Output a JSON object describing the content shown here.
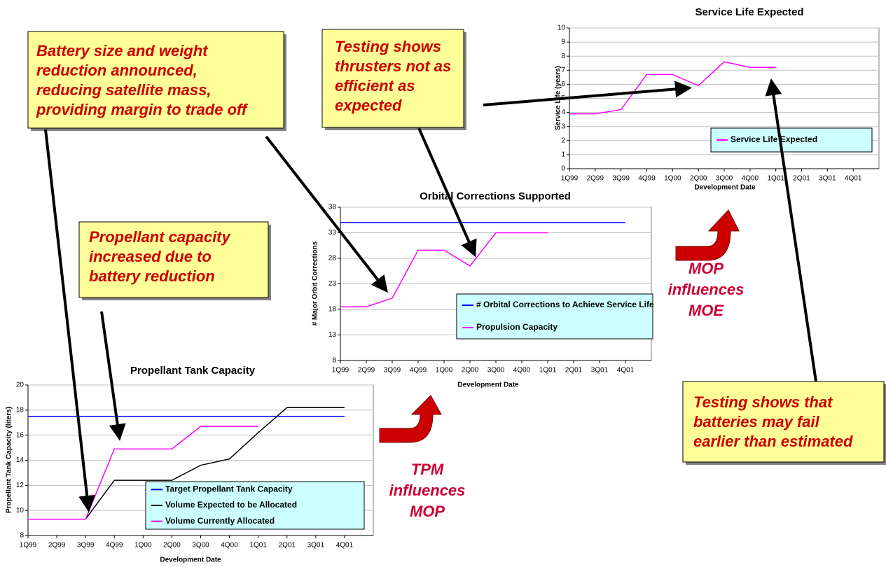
{
  "chart_data": [
    {
      "type": "line",
      "title": "Service Life Expected",
      "x_label": "Development Date",
      "y_label": "Service Life (years)",
      "categories": [
        "1Q99",
        "2Q99",
        "3Q99",
        "4Q99",
        "1Q00",
        "2Q00",
        "3Q00",
        "4Q00",
        "1Q01",
        "2Q01",
        "3Q01",
        "4Q01"
      ],
      "series": [
        {
          "name": "Service Life Expected",
          "color": "#ff00ff",
          "values": [
            3.9,
            3.9,
            4.2,
            6.7,
            6.7,
            5.9,
            7.6,
            7.2,
            7.2,
            null,
            null,
            null
          ]
        }
      ],
      "ylim": [
        0,
        10
      ],
      "yticks": [
        0,
        1,
        2,
        3,
        4,
        5,
        6,
        7,
        8,
        9,
        10
      ],
      "grid": true
    },
    {
      "type": "line",
      "title": "Orbital Corrections Supported",
      "x_label": "Development Date",
      "y_label": "# Major Orbit Corrections",
      "categories": [
        "1Q99",
        "2Q99",
        "3Q99",
        "4Q99",
        "1Q00",
        "2Q00",
        "3Q00",
        "4Q00",
        "1Q01",
        "2Q01",
        "3Q01",
        "4Q01"
      ],
      "series": [
        {
          "name": "# Orbital Corrections to Achieve Service Life",
          "color": "#0000ff",
          "values": [
            35,
            35,
            35,
            35,
            35,
            35,
            35,
            35,
            35,
            35,
            35,
            35
          ]
        },
        {
          "name": "Propulsion Capacity",
          "color": "#ff00ff",
          "values": [
            18.5,
            18.5,
            20.2,
            29.6,
            29.6,
            26.5,
            33,
            33,
            33,
            null,
            null,
            null
          ]
        }
      ],
      "ylim": [
        8,
        38
      ],
      "yticks": [
        8,
        13,
        18,
        23,
        28,
        33,
        38
      ],
      "grid": true
    },
    {
      "type": "line",
      "title": "Propellant Tank Capacity",
      "x_label": "Development Date",
      "y_label": "Propellant Tank Capacity (liters)",
      "categories": [
        "1Q99",
        "2Q99",
        "3Q99",
        "4Q99",
        "1Q00",
        "2Q00",
        "3Q00",
        "4Q00",
        "1Q01",
        "2Q01",
        "3Q01",
        "4Q01"
      ],
      "series": [
        {
          "name": "Target Propellant Tank Capacity",
          "color": "#0000ff",
          "values": [
            17.5,
            17.5,
            17.5,
            17.5,
            17.5,
            17.5,
            17.5,
            17.5,
            17.5,
            17.5,
            17.5,
            17.5
          ]
        },
        {
          "name": "Volume Expected to be Allocated",
          "color": "#000000",
          "values": [
            9.3,
            9.3,
            9.3,
            12.4,
            12.4,
            12.4,
            13.6,
            14.1,
            16.2,
            18.2,
            18.2,
            18.2
          ]
        },
        {
          "name": "Volume Currently Allocated",
          "color": "#ff00ff",
          "values": [
            9.3,
            9.3,
            9.3,
            14.9,
            14.9,
            14.9,
            16.7,
            16.7,
            16.7,
            null,
            null,
            null
          ]
        }
      ],
      "ylim": [
        8,
        20
      ],
      "yticks": [
        8,
        10,
        12,
        14,
        16,
        18,
        20
      ],
      "grid": true
    }
  ],
  "callouts": [
    {
      "lines": [
        "Battery size and weight",
        "reduction announced,",
        "reducing satellite mass,",
        "providing margin to trade off"
      ]
    },
    {
      "lines": [
        "Testing shows",
        "thrusters not as",
        "efficient as",
        "expected"
      ]
    },
    {
      "lines": [
        "Propellant capacity",
        "increased due to",
        "battery reduction"
      ]
    },
    {
      "lines": [
        "Testing shows that",
        "batteries may fail",
        "earlier than estimated"
      ]
    }
  ],
  "influences": [
    {
      "lines": [
        "MOP",
        "influences",
        "MOE"
      ]
    },
    {
      "lines": [
        "TPM",
        "influences",
        "MOP"
      ]
    }
  ]
}
